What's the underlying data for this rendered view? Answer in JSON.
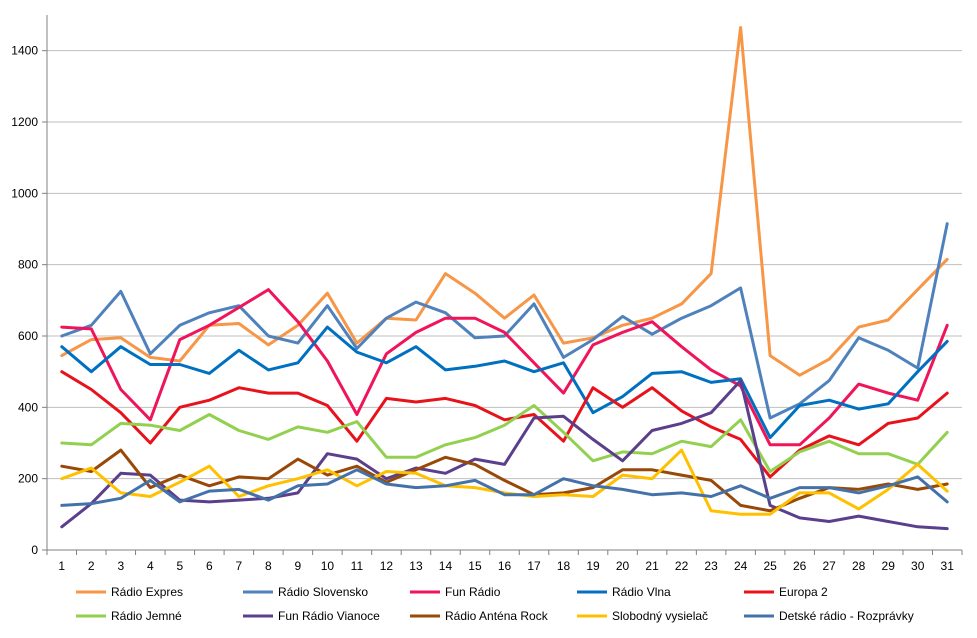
{
  "chart_data": {
    "type": "line",
    "title": "",
    "xlabel": "",
    "ylabel": "",
    "x": [
      1,
      2,
      3,
      4,
      5,
      6,
      7,
      8,
      9,
      10,
      11,
      12,
      13,
      14,
      15,
      16,
      17,
      18,
      19,
      20,
      21,
      22,
      23,
      24,
      25,
      26,
      27,
      28,
      29,
      30,
      31
    ],
    "ylim": [
      0,
      1500
    ],
    "yticks": [
      0,
      200,
      400,
      600,
      800,
      1000,
      1200,
      1400
    ],
    "grid": "horizontal",
    "legend": "bottom",
    "series": [
      {
        "name": "Rádio Expres",
        "color": "#F79646",
        "values": [
          545,
          590,
          595,
          540,
          530,
          630,
          635,
          575,
          630,
          720,
          580,
          650,
          645,
          775,
          720,
          650,
          715,
          580,
          595,
          630,
          650,
          690,
          775,
          1465,
          545,
          490,
          535,
          625,
          645,
          730,
          815
        ]
      },
      {
        "name": "Rádio Slovensko",
        "color": "#4F81BD",
        "values": [
          600,
          630,
          725,
          550,
          630,
          665,
          685,
          600,
          580,
          685,
          565,
          650,
          695,
          665,
          595,
          600,
          690,
          540,
          590,
          655,
          605,
          650,
          685,
          735,
          370,
          410,
          475,
          595,
          560,
          510,
          915
        ]
      },
      {
        "name": "Fun Rádio",
        "color": "#F0145A",
        "values": [
          625,
          620,
          450,
          365,
          590,
          630,
          680,
          730,
          640,
          530,
          380,
          550,
          610,
          650,
          650,
          610,
          525,
          440,
          575,
          610,
          640,
          570,
          505,
          460,
          295,
          295,
          370,
          465,
          440,
          420,
          630
        ]
      },
      {
        "name": "Rádio Vlna",
        "color": "#0070C0",
        "values": [
          570,
          500,
          570,
          520,
          520,
          495,
          560,
          505,
          525,
          625,
          555,
          525,
          570,
          505,
          515,
          530,
          500,
          525,
          385,
          430,
          495,
          500,
          470,
          480,
          315,
          405,
          420,
          395,
          410,
          500,
          585
        ]
      },
      {
        "name": "Europa 2",
        "color": "#E8121B",
        "values": [
          500,
          450,
          385,
          300,
          400,
          420,
          455,
          440,
          440,
          405,
          305,
          425,
          415,
          425,
          405,
          365,
          380,
          305,
          455,
          400,
          455,
          390,
          345,
          310,
          205,
          280,
          320,
          295,
          355,
          370,
          440
        ]
      },
      {
        "name": "Rádio Jemné",
        "color": "#92D050",
        "values": [
          300,
          295,
          355,
          350,
          335,
          380,
          335,
          310,
          345,
          330,
          360,
          260,
          260,
          295,
          315,
          350,
          405,
          330,
          250,
          275,
          270,
          305,
          290,
          365,
          220,
          275,
          305,
          270,
          270,
          240,
          330
        ]
      },
      {
        "name": "Fun Rádio Vianoce",
        "color": "#5B3F8C",
        "values": [
          65,
          130,
          215,
          210,
          140,
          135,
          140,
          145,
          160,
          270,
          255,
          200,
          230,
          215,
          255,
          240,
          370,
          375,
          310,
          250,
          335,
          355,
          385,
          475,
          125,
          90,
          80,
          95,
          80,
          65,
          60
        ]
      },
      {
        "name": "Rádio Anténa Rock",
        "color": "#984807",
        "values": [
          235,
          220,
          280,
          175,
          210,
          180,
          205,
          200,
          255,
          210,
          235,
          190,
          225,
          260,
          240,
          195,
          155,
          160,
          175,
          225,
          225,
          210,
          195,
          125,
          110,
          145,
          175,
          170,
          185,
          170,
          185
        ]
      },
      {
        "name": "Slobodný vysielač",
        "color": "#FFC000",
        "values": [
          200,
          230,
          160,
          150,
          190,
          235,
          150,
          180,
          200,
          225,
          180,
          220,
          215,
          180,
          175,
          160,
          150,
          155,
          150,
          210,
          200,
          280,
          110,
          100,
          100,
          160,
          160,
          115,
          170,
          240,
          165
        ]
      },
      {
        "name": "Detské rádio - Rozprávky",
        "color": "#4472A8",
        "values": [
          125,
          130,
          145,
          195,
          135,
          165,
          170,
          140,
          180,
          185,
          225,
          185,
          175,
          180,
          195,
          155,
          155,
          200,
          180,
          170,
          155,
          160,
          150,
          180,
          145,
          175,
          175,
          160,
          180,
          205,
          135
        ]
      }
    ]
  }
}
